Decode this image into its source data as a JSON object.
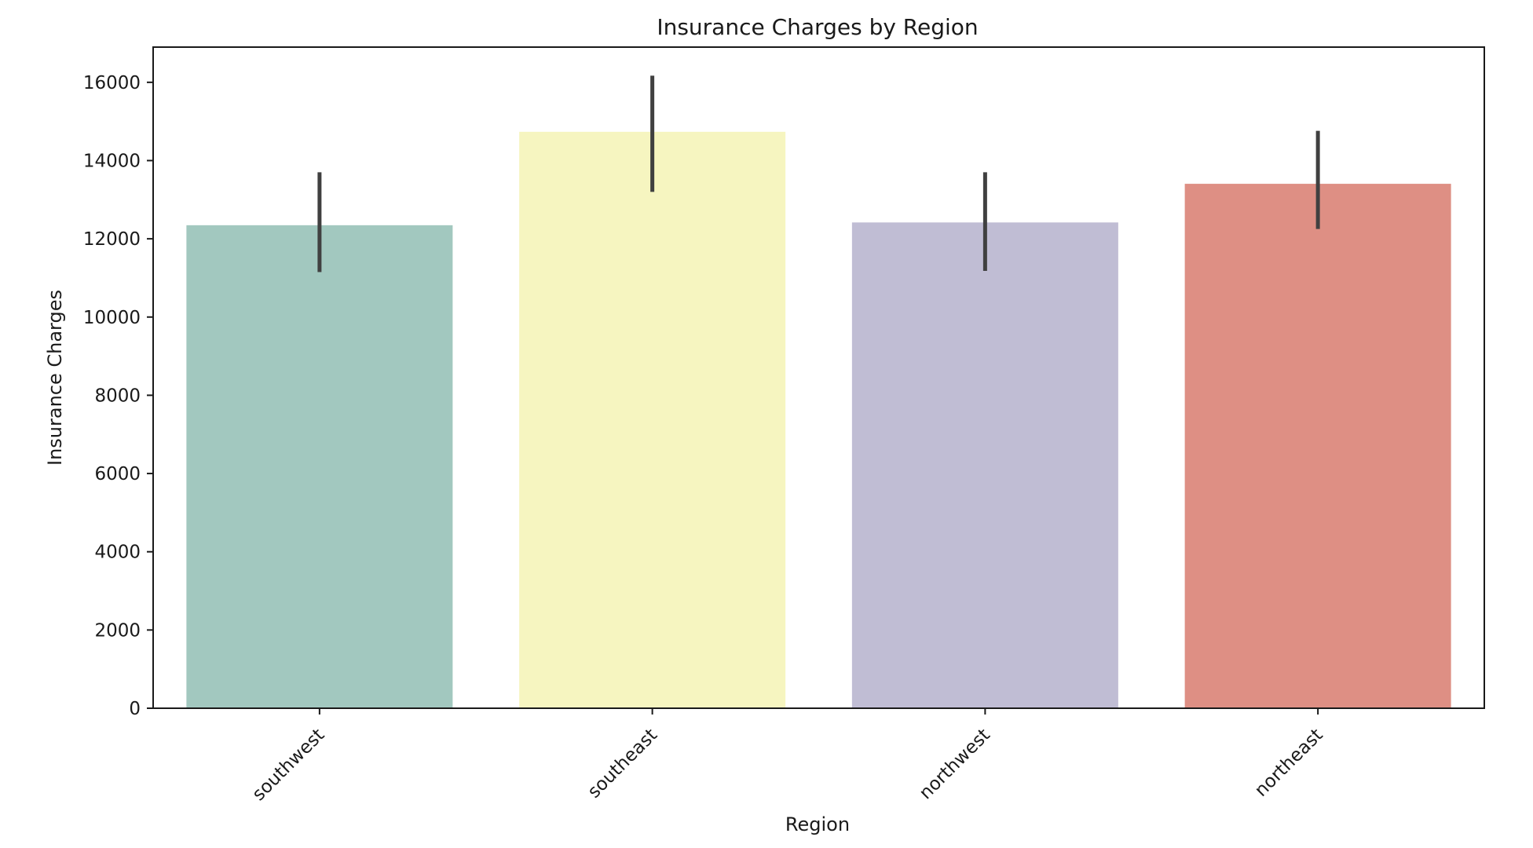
{
  "chart_data": {
    "type": "bar",
    "title": "Insurance Charges by Region",
    "xlabel": "Region",
    "ylabel": "Insurance Charges",
    "categories": [
      "southwest",
      "southeast",
      "northwest",
      "northeast"
    ],
    "values": [
      12347,
      14735,
      12418,
      13406
    ],
    "error_low": [
      11150,
      13200,
      11180,
      12250
    ],
    "error_high": [
      13700,
      16170,
      13700,
      14760
    ],
    "colors": [
      "#a2c8bf",
      "#f6f5c0",
      "#c0bdd4",
      "#de8f84"
    ],
    "error_color": "#404040",
    "ylim": [
      0,
      16900
    ],
    "yticks": [
      0,
      2000,
      4000,
      6000,
      8000,
      10000,
      12000,
      14000,
      16000
    ],
    "grid": false,
    "legend": "none"
  }
}
